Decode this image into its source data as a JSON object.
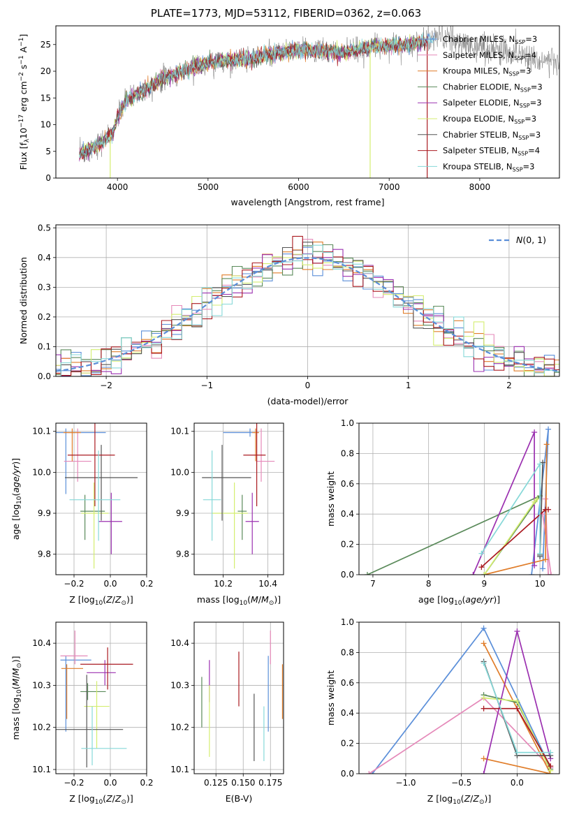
{
  "figure_title": "PLATE=1773, MJD=53112, FIBERID=0362, z=0.063",
  "series_names": [
    "Chabrier MILES, N",
    "Salpeter MILES, N",
    "Kroupa MILES, N",
    "Chabrier ELODIE, N",
    "Salpeter ELODIE, N",
    "Kroupa ELODIE, N",
    "Chabrier STELIB, N",
    "Salpeter STELIB, N",
    "Kroupa STELIB, N"
  ],
  "colors": {
    "chabrier_miles": "#5b8fd9",
    "salpeter_miles": "#e589b9",
    "kroupa_miles": "#e07d2a",
    "chabrier_elodie": "#5a8a5a",
    "salpeter_elodie": "#9b30b0",
    "kroupa_elodie": "#d4ee70",
    "chabrier_stelib": "#555555",
    "salpeter_stelib": "#aa1a20",
    "kroupa_stelib": "#86d8d8",
    "gaussian": "#5b8fd9",
    "grid": "#b0b0b0"
  },
  "chart_data": [
    {
      "id": "spectrum",
      "type": "line",
      "xlabel": "wavelength [Angstrom, rest frame]",
      "ylabel": "Flux [f_λ 10^-17 erg cm^-2 s^-1 A^-1]",
      "xlim": [
        3320,
        8880
      ],
      "ylim": [
        0,
        28.5
      ],
      "xticks": [
        4000,
        5000,
        6000,
        7000,
        8000
      ],
      "yticks": [
        0,
        5,
        10,
        15,
        20,
        25
      ],
      "grid": false,
      "legend_position": "right",
      "legend": [
        {
          "name": "Chabrier MILES, N",
          "nssp": "SSP",
          "n": "=3"
        },
        {
          "name": "Salpeter MILES, N",
          "nssp": "SSP",
          "n": "=4"
        },
        {
          "name": "Kroupa MILES, N",
          "nssp": "SSP",
          "n": "=3"
        },
        {
          "name": "Chabrier ELODIE, N",
          "nssp": "SSP",
          "n": "=3"
        },
        {
          "name": "Salpeter ELODIE, N",
          "nssp": "SSP",
          "n": "=3"
        },
        {
          "name": "Kroupa ELODIE, N",
          "nssp": "SSP",
          "n": "=3"
        },
        {
          "name": "Chabrier STELIB, N",
          "nssp": "SSP",
          "n": "=3"
        },
        {
          "name": "Salpeter STELIB, N",
          "nssp": "SSP",
          "n": "=4"
        },
        {
          "name": "Kroupa STELIB, N",
          "nssp": "SSP",
          "n": "=3"
        }
      ],
      "continuum": {
        "wavelength": [
          3580,
          3700,
          3850,
          3950,
          4000,
          4100,
          4300,
          4500,
          4800,
          5000,
          5200,
          5500,
          5800,
          6000,
          6200,
          6500,
          6800,
          7000,
          7200,
          7400,
          7500
        ],
        "flux": [
          4.5,
          5.5,
          7.0,
          8.5,
          11.5,
          14.5,
          16.5,
          18.5,
          20.5,
          21.5,
          22.0,
          22.5,
          23.5,
          24.0,
          23.8,
          23.5,
          24.5,
          24.8,
          25.0,
          25.5,
          26.0
        ]
      },
      "observed_extension": {
        "wavelength": [
          7400,
          7600,
          7800,
          8000,
          8200,
          8400,
          8600,
          8880
        ],
        "flux": [
          26.0,
          26.5,
          25.0,
          24.5,
          24.0,
          23.5,
          22.5,
          21.5
        ]
      },
      "dropouts": [
        {
          "series": "Kroupa ELODIE",
          "wavelength": 3920
        },
        {
          "series": "Kroupa ELODIE",
          "wavelength": 6790
        },
        {
          "series": "Salpeter STELIB",
          "wavelength": 7420
        }
      ]
    },
    {
      "id": "residuals",
      "type": "line",
      "xlabel": "(data-model)/error",
      "ylabel": "Normed distribution",
      "xlim": [
        -2.5,
        2.5
      ],
      "ylim": [
        0,
        0.51
      ],
      "xticks": [
        -2,
        -1,
        0,
        1,
        2
      ],
      "yticks": [
        0.0,
        0.1,
        0.2,
        0.3,
        0.4,
        0.5
      ],
      "grid": true,
      "legend_position": "top-right",
      "legend": [
        {
          "name": "N(0, 1)"
        }
      ],
      "histogram_bin_width": 0.1
    },
    {
      "id": "age_vs_z",
      "type": "scatter",
      "xlabel": "Z [log10(Z/Z⊙)]",
      "ylabel": "age [log10(age/yr)]",
      "xlim": [
        -0.3,
        0.2
      ],
      "ylim": [
        9.75,
        10.12
      ],
      "xticks": [
        -0.2,
        0.0,
        0.2
      ],
      "yticks": [
        9.8,
        9.9,
        10.0,
        10.1
      ],
      "grid": true,
      "points": [
        {
          "s": "chabrier_miles",
          "x": -0.245,
          "y": 10.097,
          "xe": [
            0.26,
            0.22
          ],
          "ye": [
            0.15,
            0.01
          ]
        },
        {
          "s": "salpeter_miles",
          "x": -0.18,
          "y": 10.027,
          "xe": [
            0.075,
            0.075
          ],
          "ye": [
            0.05,
            0.08
          ]
        },
        {
          "s": "kroupa_miles",
          "x": -0.21,
          "y": 10.097,
          "xe": [
            0.048,
            0.048
          ],
          "ye": [
            0.07,
            0.01
          ]
        },
        {
          "s": "chabrier_elodie",
          "x": -0.14,
          "y": 9.905,
          "xe": [
            0.025,
            0.11
          ],
          "ye": [
            0.07,
            0.04
          ]
        },
        {
          "s": "salpeter_elodie",
          "x": 0.005,
          "y": 9.88,
          "xe": [
            0.07,
            0.06
          ],
          "ye": [
            0.08,
            0.07
          ]
        },
        {
          "s": "kroupa_elodie",
          "x": -0.09,
          "y": 9.9,
          "xe": [
            0.07,
            0.08
          ],
          "ye": [
            0.135,
            0.075
          ]
        },
        {
          "s": "chabrier_stelib",
          "x": -0.05,
          "y": 9.987,
          "xe": [
            0.2,
            0.2
          ],
          "ye": [
            0.105,
            0.08
          ]
        },
        {
          "s": "salpeter_stelib",
          "x": -0.085,
          "y": 10.042,
          "xe": [
            0.15,
            0.11
          ],
          "ye": [
            0.125,
            0.095
          ]
        },
        {
          "s": "kroupa_stelib",
          "x": -0.065,
          "y": 9.933,
          "xe": [
            0.16,
            0.12
          ],
          "ye": [
            0.1,
            0.12
          ]
        }
      ]
    },
    {
      "id": "age_vs_mass",
      "type": "scatter",
      "xlabel": "mass [log10(M/M⊙)]",
      "ylabel": "",
      "xlim": [
        10.07,
        10.47
      ],
      "ylim": [
        9.75,
        10.12
      ],
      "xticks": [
        10.2,
        10.4
      ],
      "yticks": [
        9.8,
        9.9,
        10.0,
        10.1
      ],
      "grid": true,
      "points": [
        {
          "s": "chabrier_miles",
          "x": 10.32,
          "y": 10.097,
          "xe": [
            0.12,
            0.04
          ],
          "ye": [
            0.01,
            0.01
          ]
        },
        {
          "s": "salpeter_miles",
          "x": 10.37,
          "y": 10.027,
          "xe": [
            0.02,
            0.06
          ],
          "ye": [
            0.05,
            0.08
          ]
        },
        {
          "s": "kroupa_miles",
          "x": 10.345,
          "y": 10.097,
          "xe": [
            0.015,
            0.015
          ],
          "ye": [
            0.07,
            0.01
          ]
        },
        {
          "s": "chabrier_elodie",
          "x": 10.285,
          "y": 9.905,
          "xe": [
            0.02,
            0.02
          ],
          "ye": [
            0.07,
            0.04
          ]
        },
        {
          "s": "salpeter_elodie",
          "x": 10.33,
          "y": 9.88,
          "xe": [
            0.03,
            0.03
          ],
          "ye": [
            0.08,
            0.07
          ]
        },
        {
          "s": "kroupa_elodie",
          "x": 10.25,
          "y": 9.9,
          "xe": [
            0.1,
            0.06
          ],
          "ye": [
            0.135,
            0.075
          ]
        },
        {
          "s": "chabrier_stelib",
          "x": 10.195,
          "y": 9.987,
          "xe": [
            0.09,
            0.13
          ],
          "ye": [
            0.105,
            0.08
          ]
        },
        {
          "s": "salpeter_stelib",
          "x": 10.35,
          "y": 10.042,
          "xe": [
            0.06,
            0.04
          ],
          "ye": [
            0.125,
            0.095
          ]
        },
        {
          "s": "kroupa_stelib",
          "x": 10.15,
          "y": 9.933,
          "xe": [
            0.04,
            0.04
          ],
          "ye": [
            0.1,
            0.12
          ]
        }
      ]
    },
    {
      "id": "weight_vs_age",
      "type": "line",
      "xlabel": "age [log10(age/yr)]",
      "ylabel": "mass weight",
      "xlim": [
        6.75,
        10.35
      ],
      "ylim": [
        0,
        1.0
      ],
      "xticks": [
        7,
        8,
        9,
        10
      ],
      "yticks": [
        0.0,
        0.2,
        0.4,
        0.6,
        0.8,
        1.0
      ],
      "grid": true,
      "series": [
        {
          "s": "chabrier_miles",
          "x": [
            9.85,
            10.15,
            10.05
          ],
          "y": [
            0.0,
            0.96,
            0.04
          ]
        },
        {
          "s": "salpeter_miles",
          "x": [
            10.1,
            10.15,
            10.2,
            10.05
          ],
          "y": [
            0.5,
            0.0,
            0.0,
            0.4
          ]
        },
        {
          "s": "kroupa_miles",
          "x": [
            10.12,
            10.1,
            9.0
          ],
          "y": [
            0.86,
            0.1,
            0.0
          ]
        },
        {
          "s": "chabrier_elodie",
          "x": 6.9,
          "y": 0.0,
          "x2": 10.0,
          "y2": 0.52,
          "xs": [
            6.9,
            10.0,
            9.0
          ],
          "ys": [
            0.0,
            0.52,
            0.0
          ]
        },
        {
          "s": "salpeter_elodie",
          "x": [
            8.8,
            9.9,
            9.9
          ],
          "y": [
            0.0,
            0.94,
            0.06
          ]
        },
        {
          "s": "kroupa_elodie",
          "x": [
            9.0,
            9.9,
            9.95
          ],
          "y": [
            0.0,
            0.48,
            0.5
          ]
        },
        {
          "s": "chabrier_stelib",
          "x": [
            10.0,
            10.05,
            10.0
          ],
          "y": [
            0.12,
            0.74,
            0.13
          ]
        },
        {
          "s": "salpeter_stelib",
          "x": [
            8.95,
            10.1,
            10.15
          ],
          "y": [
            0.05,
            0.43,
            0.43
          ]
        },
        {
          "s": "kroupa_stelib",
          "x": [
            8.95,
            10.0,
            10.0
          ],
          "y": [
            0.14,
            0.73,
            0.14
          ]
        }
      ]
    },
    {
      "id": "mass_vs_z",
      "type": "scatter",
      "xlabel": "Z [log10(Z/Z⊙)]",
      "ylabel": "mass [log10(M/M⊙)]",
      "xlim": [
        -0.3,
        0.2
      ],
      "ylim": [
        10.09,
        10.45
      ],
      "xticks": [
        -0.2,
        0.0,
        0.2
      ],
      "yticks": [
        10.1,
        10.2,
        10.3,
        10.4
      ],
      "grid": true,
      "points": [
        {
          "s": "chabrier_miles",
          "x": -0.245,
          "y": 10.36,
          "xe": [
            0.03,
            0.14
          ],
          "ye": [
            0.17,
            0.01
          ]
        },
        {
          "s": "salpeter_miles",
          "x": -0.195,
          "y": 10.37,
          "xe": [
            0.08,
            0.07
          ],
          "ye": [
            0.02,
            0.06
          ]
        },
        {
          "s": "kroupa_miles",
          "x": -0.24,
          "y": 10.34,
          "xe": [
            0.03,
            0.09
          ],
          "ye": [
            0.12,
            0.01
          ]
        },
        {
          "s": "chabrier_elodie",
          "x": -0.125,
          "y": 10.285,
          "xe": [
            0.04,
            0.1
          ],
          "ye": [
            0.02,
            0.02
          ]
        },
        {
          "s": "salpeter_elodie",
          "x": -0.03,
          "y": 10.33,
          "xe": [
            0.1,
            0.06
          ],
          "ye": [
            0.03,
            0.03
          ]
        },
        {
          "s": "kroupa_elodie",
          "x": -0.075,
          "y": 10.25,
          "xe": [
            0.07,
            0.07
          ],
          "ye": [
            0.1,
            0.06
          ]
        },
        {
          "s": "chabrier_stelib",
          "x": -0.13,
          "y": 10.195,
          "xe": [
            0.2,
            0.2
          ],
          "ye": [
            0.09,
            0.13
          ]
        },
        {
          "s": "salpeter_stelib",
          "x": -0.015,
          "y": 10.35,
          "xe": [
            0.15,
            0.14
          ],
          "ye": [
            0.06,
            0.04
          ]
        },
        {
          "s": "kroupa_stelib",
          "x": -0.1,
          "y": 10.15,
          "xe": [
            0.06,
            0.19
          ],
          "ye": [
            0.04,
            0.1
          ]
        }
      ]
    },
    {
      "id": "mass_vs_ebv",
      "type": "scatter",
      "xlabel": "E(B-V)",
      "ylabel": "",
      "xlim": [
        0.105,
        0.187
      ],
      "ylim": [
        10.09,
        10.45
      ],
      "xticks": [
        0.125,
        0.15,
        0.175
      ],
      "xticklabels": [
        "0.125",
        "0.150",
        "0.175"
      ],
      "yticks": [
        10.1,
        10.2,
        10.3,
        10.4
      ],
      "grid": true,
      "points": [
        {
          "s": "chabrier_miles",
          "x": 0.173,
          "y": 10.36,
          "ye": [
            0.17,
            0.01
          ]
        },
        {
          "s": "salpeter_miles",
          "x": 0.175,
          "y": 10.37,
          "ye": [
            0.02,
            0.06
          ]
        },
        {
          "s": "kroupa_miles",
          "x": 0.186,
          "y": 10.29,
          "ye": [
            0.07,
            0.06
          ]
        },
        {
          "s": "chabrier_elodie",
          "x": 0.112,
          "y": 10.26,
          "ye": [
            0.06,
            0.06
          ]
        },
        {
          "s": "salpeter_elodie",
          "x": 0.119,
          "y": 10.31,
          "ye": [
            0.05,
            0.05
          ]
        },
        {
          "s": "kroupa_elodie",
          "x": 0.119,
          "y": 10.22,
          "ye": [
            0.09,
            0.08
          ]
        },
        {
          "s": "chabrier_stelib",
          "x": 0.16,
          "y": 10.2,
          "ye": [
            0.08,
            0.08
          ]
        },
        {
          "s": "salpeter_stelib",
          "x": 0.146,
          "y": 10.31,
          "ye": [
            0.06,
            0.07
          ]
        },
        {
          "s": "kroupa_stelib",
          "x": 0.169,
          "y": 10.18,
          "ye": [
            0.06,
            0.07
          ]
        }
      ]
    },
    {
      "id": "weight_vs_z",
      "type": "line",
      "xlabel": "Z [log10(Z/Z⊙)]",
      "ylabel": "mass weight",
      "xlim": [
        -1.42,
        0.38
      ],
      "ylim": [
        0,
        1.0
      ],
      "xticks": [
        -1.0,
        -0.5,
        0.0
      ],
      "yticks": [
        0.0,
        0.2,
        0.4,
        0.6,
        0.8,
        1.0
      ],
      "grid": true,
      "series": [
        {
          "s": "chabrier_miles",
          "x": [
            -1.3,
            -0.3,
            0.3
          ],
          "y": [
            0.0,
            0.96,
            0.04
          ]
        },
        {
          "s": "salpeter_miles",
          "x": [
            -1.33,
            -0.3,
            0.3
          ],
          "y": [
            0.0,
            0.5,
            0.04
          ]
        },
        {
          "s": "kroupa_miles",
          "x": [
            -0.3,
            0.3,
            -0.3
          ],
          "y": [
            0.1,
            0.0,
            0.86
          ]
        },
        {
          "s": "chabrier_elodie",
          "x": [
            -0.3,
            0.0,
            0.3
          ],
          "y": [
            0.52,
            0.47,
            0.03
          ]
        },
        {
          "s": "salpeter_elodie",
          "x": [
            -0.3,
            0.0,
            0.3
          ],
          "y": [
            0.0,
            0.94,
            0.1
          ]
        },
        {
          "s": "kroupa_elodie",
          "x": [
            -0.3,
            0.0,
            0.3
          ],
          "y": [
            0.5,
            0.48,
            0.02
          ]
        },
        {
          "s": "chabrier_stelib",
          "x": [
            -0.3,
            0.0,
            0.3
          ],
          "y": [
            0.74,
            0.12,
            0.12
          ]
        },
        {
          "s": "salpeter_stelib",
          "x": [
            -0.3,
            0.0,
            0.3
          ],
          "y": [
            0.43,
            0.43,
            0.05
          ]
        },
        {
          "s": "kroupa_stelib",
          "x": [
            -0.3,
            0.0,
            0.3
          ],
          "y": [
            0.73,
            0.14,
            0.14
          ]
        }
      ]
    }
  ]
}
